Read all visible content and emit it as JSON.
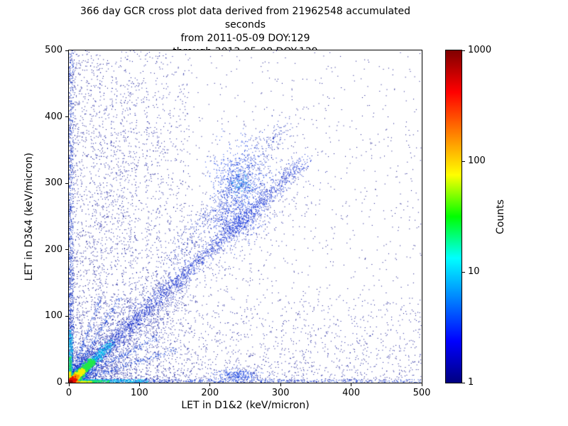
{
  "chart_data": {
    "type": "heatmap",
    "title_lines": [
      "366 day GCR cross plot data derived from 21962548 accumulated seconds",
      "from 2011-05-09 DOY:129",
      "through 2012-05-08 DOY:129"
    ],
    "xlabel": "LET in D1&2 (keV/micron)",
    "ylabel": "LET in D3&4 (keV/micron)",
    "xlim": [
      0,
      500
    ],
    "ylim": [
      0,
      500
    ],
    "x_ticks": [
      0,
      100,
      200,
      300,
      400,
      500
    ],
    "y_ticks": [
      0,
      100,
      200,
      300,
      400,
      500
    ],
    "grid": false,
    "colorbar": {
      "label": "Counts",
      "scale": "log",
      "vmin": 1,
      "vmax": 1000,
      "ticks": [
        1,
        10,
        100,
        1000
      ],
      "colormap": "jet",
      "stops": [
        [
          "#000080",
          0
        ],
        [
          "#0000ff",
          0.125
        ],
        [
          "#00ffff",
          0.375
        ],
        [
          "#00ff00",
          0.5
        ],
        [
          "#ffff00",
          0.625
        ],
        [
          "#ff0000",
          0.875
        ],
        [
          "#800000",
          1
        ]
      ]
    },
    "scatter_model": {
      "seed": 1366,
      "layers": [
        {
          "kind": "uniform",
          "n": 2400,
          "x": [
            0,
            500
          ],
          "xpow": 1.5,
          "y": [
            0,
            500
          ],
          "ypow": 1.5,
          "color": "#000082"
        },
        {
          "kind": "uniform",
          "n": 1800,
          "x": [
            0,
            170
          ],
          "xpow": 1.7,
          "y": [
            0,
            500
          ],
          "ypow": 1.15,
          "color": "#000a96"
        },
        {
          "kind": "uniform",
          "n": 1400,
          "x": [
            0,
            500
          ],
          "xpow": 1.25,
          "y": [
            0,
            130
          ],
          "ypow": 2.0,
          "color": "#000a96"
        },
        {
          "kind": "vlines",
          "xs": [
            37,
            44,
            52,
            60,
            68,
            77,
            86,
            95,
            110,
            125
          ],
          "n": 75,
          "jitter": 1.3,
          "y": [
            6,
            455
          ],
          "ypow": 1.5,
          "color": "#000d9e"
        },
        {
          "kind": "diag",
          "n": 1100,
          "t": [
            0,
            330
          ],
          "tpow": 1.5,
          "sigma": 22,
          "color": "#000d9e"
        },
        {
          "kind": "diag",
          "n": 800,
          "t": [
            0,
            150
          ],
          "tpow": 1.7,
          "sigma": 12,
          "color": "#0018b4"
        },
        {
          "kind": "diag",
          "n": 2400,
          "t": [
            0,
            335
          ],
          "tpow": 1.65,
          "sigma": 6,
          "color": "#0022cf"
        },
        {
          "kind": "diag",
          "n": 450,
          "t": [
            145,
            305
          ],
          "tpow": 1.0,
          "sigma": 9,
          "slope": 1.27,
          "color": "#001bb4"
        },
        {
          "kind": "gauss",
          "n": 420,
          "cx": 235,
          "cy": 245,
          "sx": 18,
          "sy": 14,
          "color": "#0026d8"
        },
        {
          "kind": "gauss",
          "n": 800,
          "cx": 243,
          "cy": 302,
          "sx": 20,
          "sy": 30,
          "color": "#0030e0"
        },
        {
          "kind": "gauss",
          "n": 70,
          "cx": 243,
          "cy": 300,
          "sx": 8,
          "sy": 10,
          "color": "#00a0f0"
        },
        {
          "kind": "diag",
          "n": 300,
          "t": [
            0,
            150
          ],
          "tpow": 1.8,
          "sigma": 2.5,
          "slope": 0.33,
          "color": "#0038d8"
        },
        {
          "kind": "diag",
          "n": 320,
          "t": [
            0,
            125
          ],
          "tpow": 1.8,
          "sigma": 2.5,
          "slope": 0.55,
          "color": "#0038d8"
        },
        {
          "kind": "diag",
          "n": 300,
          "t": [
            0,
            72
          ],
          "tpow": 1.8,
          "sigma": 2.0,
          "slope": 1.8,
          "color": "#0038d8"
        },
        {
          "kind": "diag",
          "n": 220,
          "t": [
            0,
            45
          ],
          "tpow": 1.8,
          "sigma": 1.6,
          "slope": 2.9,
          "color": "#0038d8"
        },
        {
          "kind": "uniform",
          "n": 1100,
          "x": [
            0,
            500
          ],
          "xpow": 2.3,
          "y": [
            0,
            5.5
          ],
          "ypow": 1.4,
          "color": "#0030d0"
        },
        {
          "kind": "gauss",
          "n": 240,
          "cx": 240,
          "cy": 12,
          "sx": 15,
          "sy": 4.5,
          "color": "#0033dd"
        },
        {
          "kind": "uniform",
          "n": 850,
          "x": [
            0,
            6
          ],
          "xpow": 1.35,
          "y": [
            0,
            500
          ],
          "ypow": 1.85,
          "color": "#002cc8"
        },
        {
          "kind": "diag",
          "n": 1300,
          "t": [
            0,
            60
          ],
          "tpow": 2.1,
          "sigma": 3.2,
          "color": "#00c8f0"
        },
        {
          "kind": "uniform",
          "n": 800,
          "x": [
            0,
            112
          ],
          "xpow": 1.6,
          "y": [
            0,
            5.5
          ],
          "ypow": 1.4,
          "color": "#00c0ee"
        },
        {
          "kind": "uniform",
          "n": 450,
          "x": [
            0,
            5
          ],
          "xpow": 1.4,
          "y": [
            0,
            80
          ],
          "ypow": 1.8,
          "color": "#00b8e8"
        },
        {
          "kind": "diag",
          "n": 900,
          "t": [
            0,
            33
          ],
          "tpow": 2.0,
          "sigma": 2.3,
          "color": "#22e84a",
          "size": 2
        },
        {
          "kind": "uniform",
          "n": 380,
          "x": [
            0,
            58
          ],
          "xpow": 1.5,
          "y": [
            0,
            3.8
          ],
          "ypow": 1,
          "color": "#22e84a"
        },
        {
          "kind": "uniform",
          "n": 200,
          "x": [
            0,
            3.4
          ],
          "xpow": 1,
          "y": [
            0,
            40
          ],
          "ypow": 1.5,
          "color": "#22e84a"
        },
        {
          "kind": "diag",
          "n": 800,
          "t": [
            0,
            19
          ],
          "tpow": 1.9,
          "sigma": 1.8,
          "color": "#f4f000",
          "size": 2
        },
        {
          "kind": "uniform",
          "n": 260,
          "x": [
            0,
            32
          ],
          "xpow": 1.4,
          "y": [
            0,
            2.8
          ],
          "ypow": 1,
          "color": "#f4f000"
        },
        {
          "kind": "uniform",
          "n": 110,
          "x": [
            0,
            2.4
          ],
          "xpow": 1,
          "y": [
            0,
            17
          ],
          "ypow": 1,
          "color": "#f4f000"
        },
        {
          "kind": "diag",
          "n": 600,
          "t": [
            0,
            11
          ],
          "tpow": 1.8,
          "sigma": 1.5,
          "color": "#ff9800",
          "size": 2
        },
        {
          "kind": "uniform",
          "n": 170,
          "x": [
            0,
            15
          ],
          "xpow": 1,
          "y": [
            0,
            2.2
          ],
          "ypow": 1,
          "color": "#ff9800"
        },
        {
          "kind": "gauss",
          "n": 320,
          "cx": 3,
          "cy": 3,
          "sx": 2.4,
          "sy": 2.4,
          "color": "#e81200",
          "size": 2
        },
        {
          "kind": "gauss",
          "n": 70,
          "cx": 1.5,
          "cy": 1.5,
          "sx": 1.1,
          "sy": 1.1,
          "color": "#900000",
          "size": 2
        }
      ]
    }
  }
}
